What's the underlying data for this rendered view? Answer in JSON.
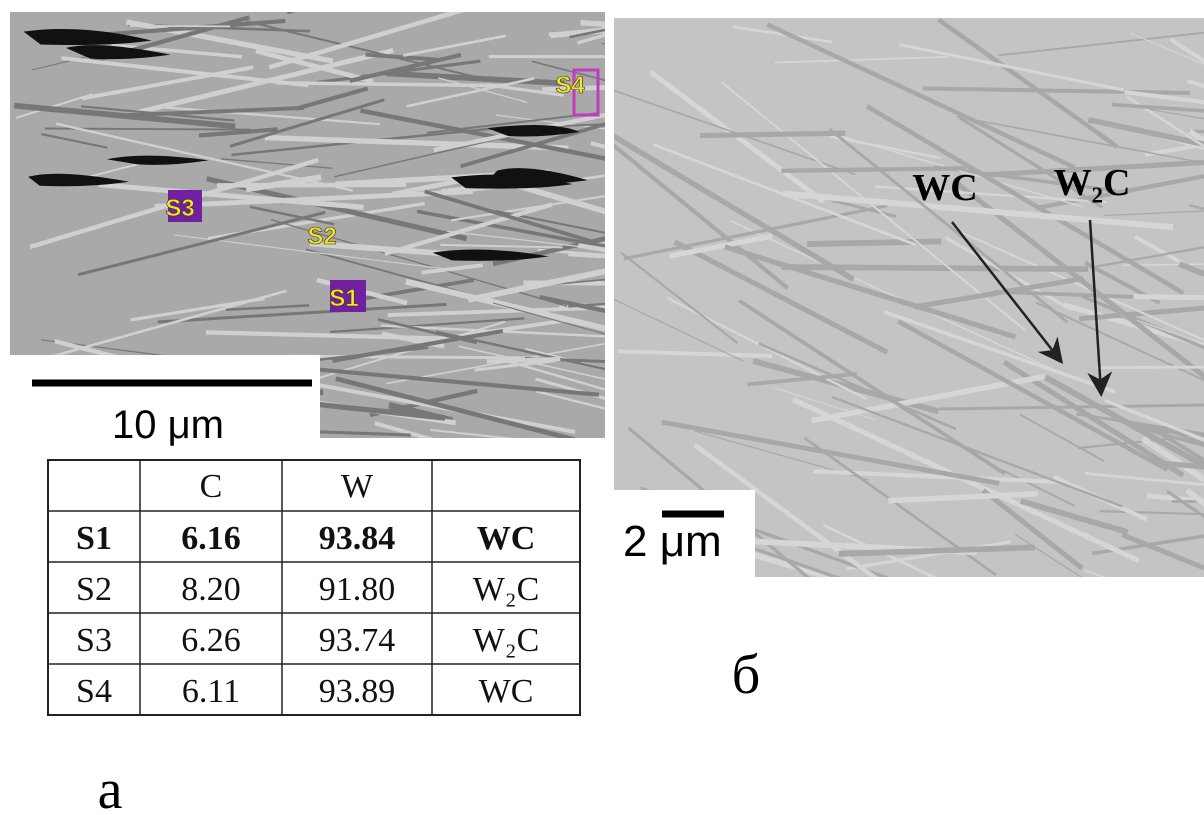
{
  "panel_a": {
    "markers": [
      "S1",
      "S2",
      "S3",
      "S4"
    ],
    "scale_bar": "10 μm",
    "label": "а"
  },
  "table": {
    "header": [
      "C",
      "W"
    ],
    "rows": [
      [
        "S1",
        "6.16",
        "93.84",
        "WC"
      ],
      [
        "S2",
        "8.20",
        "91.80",
        "W₂C"
      ],
      [
        "S3",
        "6.26",
        "93.74",
        "W₂C"
      ],
      [
        "S4",
        "6.11",
        "93.89",
        "WC"
      ]
    ]
  },
  "panel_b": {
    "annotations": [
      "WC",
      "W₂C"
    ],
    "scale_bar": "2 μm",
    "label": "б"
  }
}
